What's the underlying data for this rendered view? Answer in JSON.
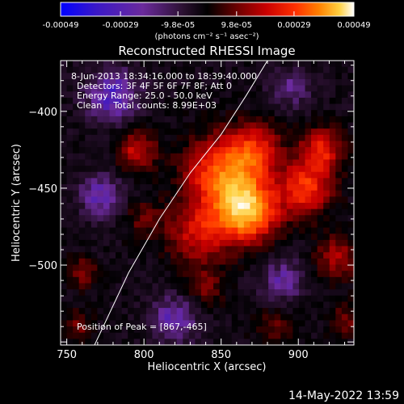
{
  "chart_data": {
    "type": "heatmap",
    "title": "Reconstructed RHESSI Image",
    "xlabel": "Heliocentric X (arcsec)",
    "ylabel": "Heliocentric Y (arcsec)",
    "xlim": [
      746,
      936
    ],
    "ylim": [
      -552,
      -367
    ],
    "xticks": [
      750,
      800,
      850,
      900
    ],
    "yticks": [
      -400,
      -450,
      -500
    ],
    "colorbar": {
      "tick_labels": [
        "-0.00049",
        "-0.00029",
        "-9.8e-05",
        "9.8e-05",
        "0.00029",
        "0.00049"
      ],
      "tick_values": [
        -0.00049,
        -0.00029,
        -9.8e-05,
        9.8e-05,
        0.00029,
        0.00049
      ],
      "range": [
        -0.00049,
        0.00049
      ],
      "unit_label": "(photons cm⁻² s⁻¹ asec⁻²)"
    },
    "info_lines": [
      "8-Jun-2013 18:34:16.000 to 18:39:40.000",
      "Detectors: 3F 4F 5F 6F 7F 8F; Att 0",
      "Energy Range: 25.0 - 50.0 keV",
      "Clean    Total counts: 8.99E+03"
    ],
    "peak_label": "Position of Peak = [867,-465]",
    "peak_position": [
      867,
      -465
    ],
    "limb_curve": [
      [
        768,
        -552
      ],
      [
        790,
        -505
      ],
      [
        810,
        -470
      ],
      [
        830,
        -440
      ],
      [
        850,
        -415
      ],
      [
        866,
        -390
      ],
      [
        880,
        -367
      ]
    ],
    "sources": [
      {
        "x": 867,
        "y": -465,
        "amplitude": 0.00049,
        "sigma": 14
      },
      {
        "x": 850,
        "y": -440,
        "amplitude": 0.00036,
        "sigma": 17
      },
      {
        "x": 872,
        "y": -425,
        "amplitude": 0.00026,
        "sigma": 12
      },
      {
        "x": 835,
        "y": -480,
        "amplitude": 0.00024,
        "sigma": 14
      },
      {
        "x": 905,
        "y": -450,
        "amplitude": 0.00032,
        "sigma": 12
      },
      {
        "x": 915,
        "y": -425,
        "amplitude": 0.00028,
        "sigma": 10
      },
      {
        "x": 925,
        "y": -495,
        "amplitude": 0.0002,
        "sigma": 10
      },
      {
        "x": 795,
        "y": -425,
        "amplitude": 0.00024,
        "sigma": 9
      },
      {
        "x": 800,
        "y": -470,
        "amplitude": 0.00012,
        "sigma": 9
      },
      {
        "x": 760,
        "y": -505,
        "amplitude": 0.00016,
        "sigma": 7
      },
      {
        "x": 757,
        "y": -540,
        "amplitude": 0.00014,
        "sigma": 7
      },
      {
        "x": 885,
        "y": -540,
        "amplitude": 0.00012,
        "sigma": 9
      },
      {
        "x": 840,
        "y": -515,
        "amplitude": 0.00014,
        "sigma": 9
      },
      {
        "x": 930,
        "y": -535,
        "amplitude": 0.00014,
        "sigma": 8
      },
      {
        "x": 780,
        "y": -390,
        "amplitude": -0.00022,
        "sigma": 12
      },
      {
        "x": 772,
        "y": -455,
        "amplitude": -0.00018,
        "sigma": 10
      },
      {
        "x": 820,
        "y": -535,
        "amplitude": -0.00018,
        "sigma": 11
      },
      {
        "x": 895,
        "y": -385,
        "amplitude": -0.00014,
        "sigma": 9
      },
      {
        "x": 890,
        "y": -510,
        "amplitude": -0.00016,
        "sigma": 10
      }
    ]
  },
  "footer": {
    "timestamp": "14-May-2022 13:59"
  },
  "colors": {
    "background": "#000000",
    "foreground": "#ffffff",
    "colormap": [
      "#0000ff",
      "#3a18c8",
      "#6b2a9c",
      "#2a1030",
      "#000000",
      "#6a0000",
      "#c80000",
      "#ff3000",
      "#ff8000",
      "#ffd040",
      "#ffffff"
    ]
  }
}
